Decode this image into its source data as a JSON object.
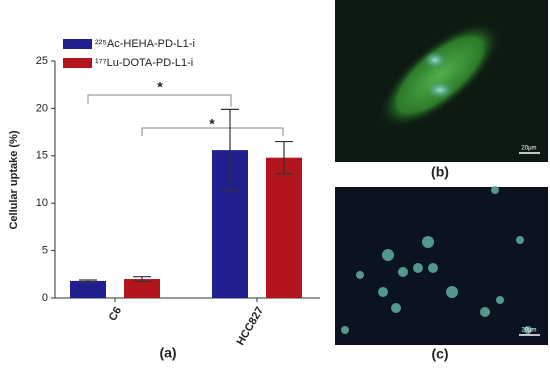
{
  "chart_data": {
    "type": "bar",
    "y_label": "Cellular uptake (%)",
    "categories": [
      "C6",
      "HCC827"
    ],
    "series": [
      {
        "name": "²²⁵Ac-HEHA-PD-L1-i",
        "color": "#1f1f8f",
        "values": [
          1.8,
          15.6
        ],
        "errors": [
          0.1,
          4.3
        ]
      },
      {
        "name": "¹⁷⁷Lu-DOTA-PD-L1-i",
        "color": "#b2151b",
        "values": [
          2.0,
          14.8
        ],
        "errors": [
          0.25,
          1.7
        ]
      }
    ],
    "ylim": [
      0,
      25
    ],
    "yticks": [
      0,
      5,
      10,
      15,
      20,
      25
    ],
    "annotations": [
      "*",
      "*"
    ],
    "panel_label": "(a)"
  },
  "images": [
    {
      "label": "(b)",
      "scale_bar": "20μm"
    },
    {
      "label": "(c)",
      "scale_bar": "20μm"
    }
  ]
}
